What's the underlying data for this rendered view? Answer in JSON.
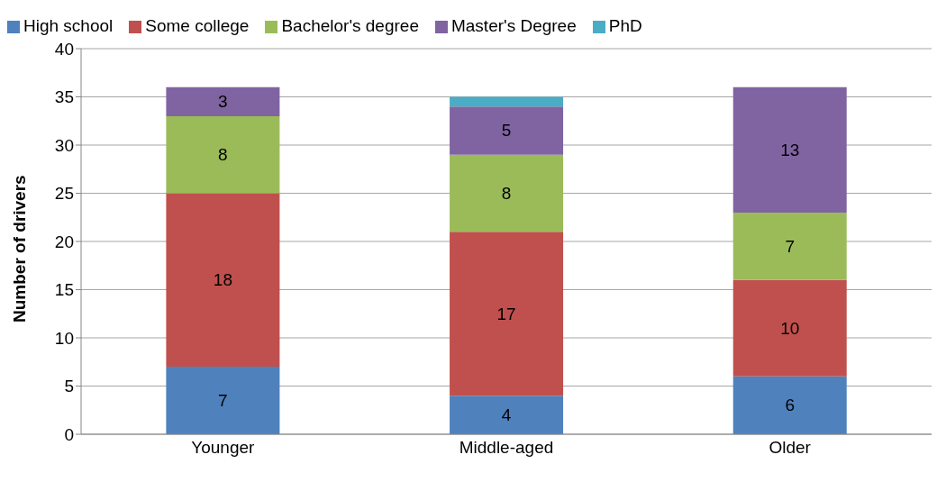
{
  "chart_data": {
    "type": "bar",
    "stacked": true,
    "categories": [
      "Younger",
      "Middle-aged",
      "Older"
    ],
    "ylabel": "Number of drivers",
    "ylim": [
      0,
      40
    ],
    "yticks": [
      0,
      5,
      10,
      15,
      20,
      25,
      30,
      35,
      40
    ],
    "grid": "y",
    "legend": "top left",
    "series": [
      {
        "name": "High school",
        "color": "#4f81bd",
        "values": [
          7,
          4,
          6
        ],
        "value_labels": [
          "7",
          "4",
          "6"
        ]
      },
      {
        "name": "Some college",
        "color": "#c0504d",
        "values": [
          18,
          17,
          10
        ],
        "value_labels": [
          "18",
          "17",
          "10"
        ]
      },
      {
        "name": "Bachelor's degree",
        "color": "#9bbb59",
        "values": [
          8,
          8,
          7
        ],
        "value_labels": [
          "8",
          "8",
          "7"
        ]
      },
      {
        "name": "Master's Degree",
        "color": "#8064a2",
        "values": [
          3,
          5,
          13
        ],
        "value_labels": [
          "3",
          "5",
          "13"
        ]
      },
      {
        "name": "PhD",
        "color": "#4bacc6",
        "values": [
          null,
          1,
          null
        ],
        "value_labels": [
          null,
          null,
          null
        ]
      }
    ]
  }
}
